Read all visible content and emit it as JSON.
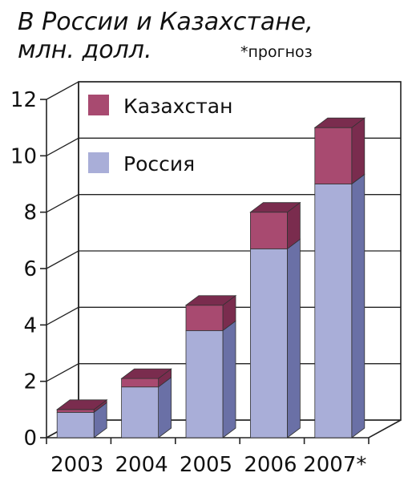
{
  "header": {
    "title_line1": "В России и Казахстане,",
    "title_line2": "млн. долл.",
    "note": "*прогноз"
  },
  "chart_data": {
    "type": "bar",
    "stacked": true,
    "three_d": true,
    "categories": [
      "2003",
      "2004",
      "2005",
      "2006",
      "2007*"
    ],
    "series": [
      {
        "name": "Россия",
        "values": [
          0.9,
          1.8,
          3.8,
          6.7,
          9.0
        ],
        "color": "#a9aed8",
        "side_color": "#6a70a6"
      },
      {
        "name": "Казахстан",
        "values": [
          0.1,
          0.3,
          0.9,
          1.3,
          2.0
        ],
        "color": "#a84a70",
        "side_color": "#7a2c4e"
      }
    ],
    "y_ticks": [
      "0",
      "2",
      "4",
      "6",
      "8",
      "10",
      "12"
    ],
    "ylim": [
      0,
      12
    ],
    "grid": true,
    "legend_position": "top-left"
  }
}
